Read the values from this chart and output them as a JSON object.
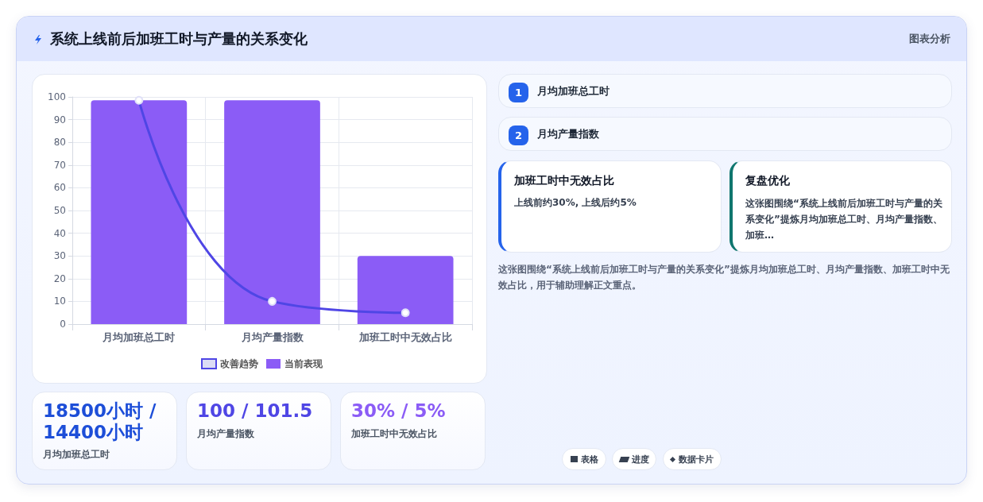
{
  "chart_data": {
    "type": "bar",
    "title": "系统上线前后加班工时与产量的关系变化",
    "categories": [
      "月均加班总工时",
      "月均产量指数",
      "加班工时中无效占比"
    ],
    "series": [
      {
        "name": "改善趋势",
        "type": "line",
        "color": "#4f46e5",
        "values": [
          98.5,
          10,
          5
        ]
      },
      {
        "name": "当前表现",
        "color": "#8b5cf6",
        "values": [
          98.5,
          98.5,
          30
        ]
      }
    ],
    "ylim": [
      0,
      100
    ],
    "yticks": [
      0,
      10,
      20,
      30,
      40,
      50,
      60,
      70,
      80,
      90,
      100
    ],
    "grid": true,
    "legend": "bottom",
    "marker": "circle",
    "annotations": [
      "图表分析",
      "1",
      "月均加班总工时",
      "2",
      "月均产量指数",
      "加班工时中无效占比",
      "上线前约30%, 上线后约5%",
      "复盘优化",
      "这张图围绕“系统上线前后加班工时与产量的关系变化”提炼月均加班总工时、月均产量指数、加班…",
      "这张图围绕“系统上线前后加班工时与产量的关系变化”提炼月均加班总工时、月均产量指数、加班工时中无效占比，用于辅助理解正文重点。",
      "18500小时 / 14400小时",
      "月均加班总工时",
      "100 / 101.5",
      "月均产量指数",
      "30% / 5%",
      "加班工时中无效占比",
      "表格",
      "进度",
      "数据卡片"
    ]
  }
}
